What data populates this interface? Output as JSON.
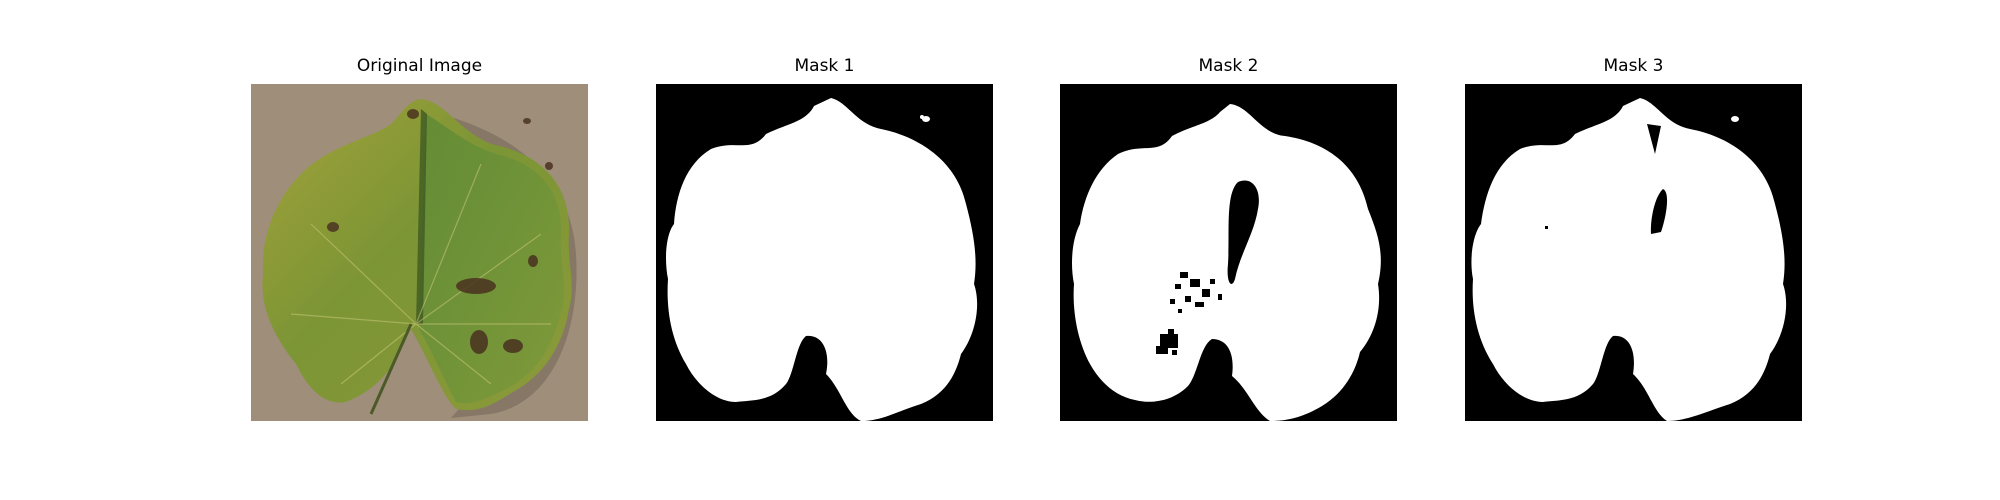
{
  "figure": {
    "panels": [
      {
        "title": "Original Image",
        "kind": "photo"
      },
      {
        "title": "Mask 1",
        "kind": "mask"
      },
      {
        "title": "Mask 2",
        "kind": "mask"
      },
      {
        "title": "Mask 3",
        "kind": "mask"
      }
    ]
  },
  "colors": {
    "background": "#ffffff",
    "mask_foreground": "#ffffff",
    "mask_background": "#000000",
    "photo_background": "#a69480",
    "leaf_green": "#6f8f2e",
    "leaf_yellow": "#9a9b32",
    "lesion_brown": "#4a3220"
  }
}
